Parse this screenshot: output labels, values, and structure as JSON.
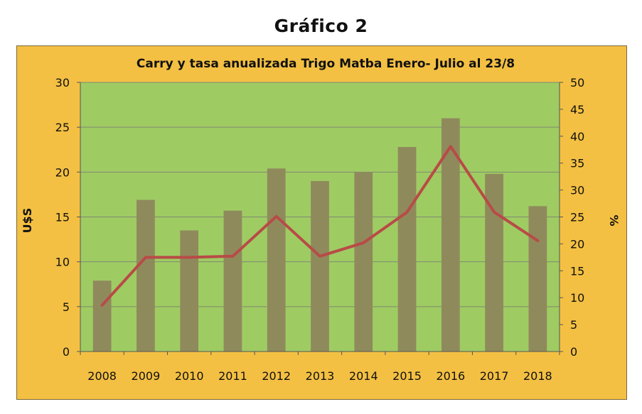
{
  "page": {
    "title": "Gráfico 2"
  },
  "colors": {
    "outer_background": "#f4c043",
    "plot_background": "#9fcb63",
    "bar_fill": "#8f8a5c",
    "line_stroke": "#b84b47",
    "gridline": "#7f8a70"
  },
  "chart_data": {
    "type": "bar",
    "title": "Carry y tasa anualizada Trigo Matba Enero- Julio al 23/8",
    "categories": [
      "2008",
      "2009",
      "2010",
      "2011",
      "2012",
      "2013",
      "2014",
      "2015",
      "2016",
      "2017",
      "2018"
    ],
    "ylabel": "U$S",
    "y2label": "%",
    "ylim": [
      0,
      30
    ],
    "y2lim": [
      0,
      50
    ],
    "y_ticks": [
      0,
      5,
      10,
      15,
      20,
      25,
      30
    ],
    "y2_ticks": [
      0,
      5,
      10,
      15,
      20,
      25,
      30,
      35,
      40,
      45,
      50
    ],
    "grid": true,
    "series": [
      {
        "type": "bar",
        "axis": "left",
        "values": [
          7.9,
          16.9,
          13.5,
          15.7,
          20.4,
          19.0,
          20.0,
          22.8,
          26.0,
          19.8,
          16.2
        ]
      },
      {
        "type": "line",
        "axis": "right",
        "values": [
          8.6,
          17.5,
          17.5,
          17.7,
          25.1,
          17.7,
          20.2,
          25.9,
          38.1,
          25.9,
          20.6
        ]
      }
    ]
  }
}
